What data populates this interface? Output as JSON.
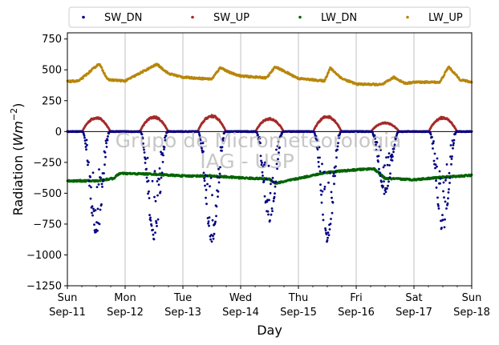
{
  "chart_data": {
    "type": "scatter",
    "xlabel": "Day",
    "ylabel_main": "Radiation (",
    "ylabel_unit_base": "Wm",
    "ylabel_unit_exp": "−2",
    "ylabel_close": ")",
    "ylim": [
      -1250,
      800
    ],
    "xlim": [
      0,
      7
    ],
    "yticks": [
      750,
      500,
      250,
      0,
      -250,
      -500,
      -750,
      -1000,
      -1250
    ],
    "ytick_labels": [
      "750",
      "500",
      "250",
      "0",
      "−250",
      "−500",
      "−750",
      "−1000",
      "−1250"
    ],
    "xticks": [
      {
        "day": 0,
        "weekday": "Sun",
        "date": "Sep-11"
      },
      {
        "day": 1,
        "weekday": "Mon",
        "date": "Sep-12"
      },
      {
        "day": 2,
        "weekday": "Tue",
        "date": "Sep-13"
      },
      {
        "day": 3,
        "weekday": "Wed",
        "date": "Sep-14"
      },
      {
        "day": 4,
        "weekday": "Thu",
        "date": "Sep-15"
      },
      {
        "day": 5,
        "weekday": "Fri",
        "date": "Sep-16"
      },
      {
        "day": 6,
        "weekday": "Sat",
        "date": "Sep-17"
      },
      {
        "day": 7,
        "weekday": "Sun",
        "date": "Sep-18"
      }
    ],
    "grid": "vertical at day ticks",
    "zero_line": true,
    "legend_placement": "top, outside, single row",
    "watermark": [
      "Grupo de Micrometeorologia",
      "IAG - USP"
    ],
    "series": [
      {
        "name": "SW_DN",
        "color": "#000080",
        "baseline": 0,
        "daily_peak": [
          -850,
          -870,
          -890,
          -730,
          -890,
          -500,
          -810
        ]
      },
      {
        "name": "SW_UP",
        "color": "#a52a2a",
        "baseline": 0,
        "daily_peak": [
          120,
          125,
          135,
          110,
          130,
          75,
          120
        ]
      },
      {
        "name": "LW_DN",
        "color": "#006400",
        "x": [
          0,
          0.5,
          0.8,
          0.9,
          1.5,
          2.0,
          2.5,
          3.0,
          3.5,
          3.6,
          4.0,
          4.5,
          5.0,
          5.3,
          5.5,
          6.0,
          6.5,
          7.0
        ],
        "y": [
          -400,
          -400,
          -380,
          -340,
          -345,
          -360,
          -360,
          -375,
          -385,
          -420,
          -380,
          -330,
          -310,
          -300,
          -380,
          -390,
          -370,
          -355
        ]
      },
      {
        "name": "LW_UP",
        "color": "#b8860b",
        "x": [
          0,
          0.2,
          0.55,
          0.7,
          1.0,
          1.55,
          1.75,
          2.0,
          2.5,
          2.65,
          2.8,
          3.0,
          3.45,
          3.6,
          4.0,
          4.45,
          4.55,
          4.75,
          5.0,
          5.45,
          5.65,
          5.85,
          6.0,
          6.45,
          6.6,
          6.8,
          7.0
        ],
        "y": [
          405,
          410,
          550,
          420,
          410,
          545,
          470,
          440,
          425,
          520,
          480,
          450,
          435,
          525,
          430,
          410,
          515,
          430,
          385,
          380,
          440,
          390,
          400,
          400,
          525,
          420,
          400
        ]
      }
    ]
  }
}
